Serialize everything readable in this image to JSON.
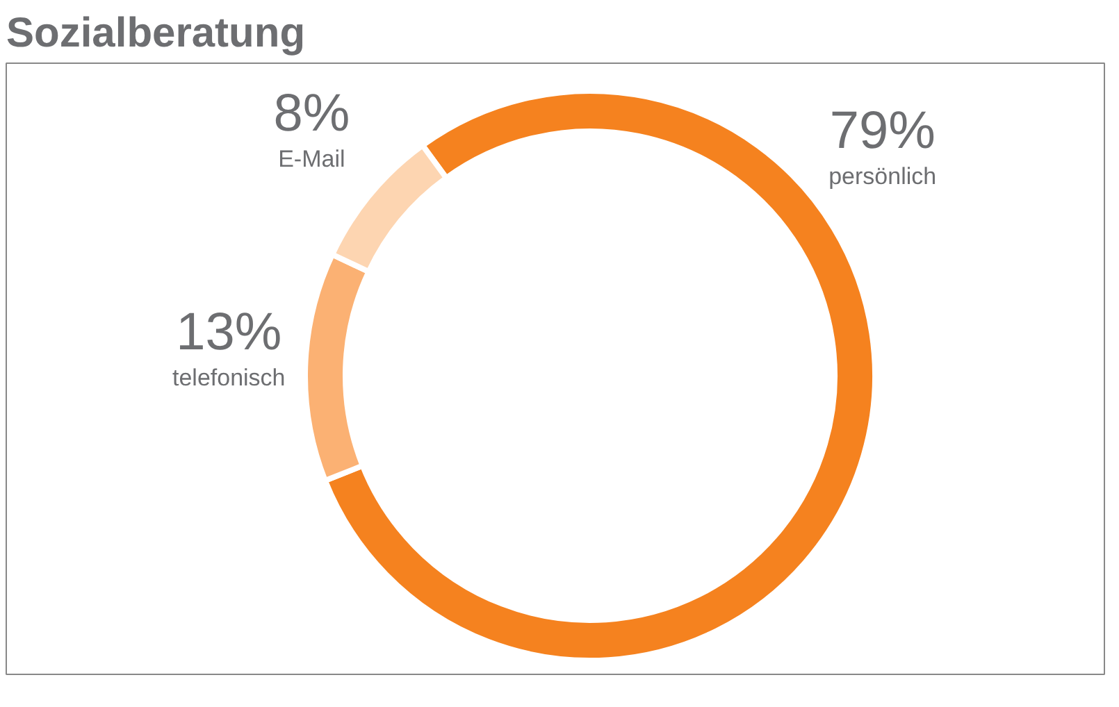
{
  "chart_data": {
    "type": "donut",
    "title": "Sozialberatung",
    "categories": [
      "persönlich",
      "telefonisch",
      "E-Mail"
    ],
    "values": [
      79,
      13,
      8
    ],
    "colors": [
      "#f5821f",
      "#fbb173",
      "#fdd5b1"
    ],
    "value_labels": [
      "79%",
      "13%",
      "8%"
    ]
  }
}
